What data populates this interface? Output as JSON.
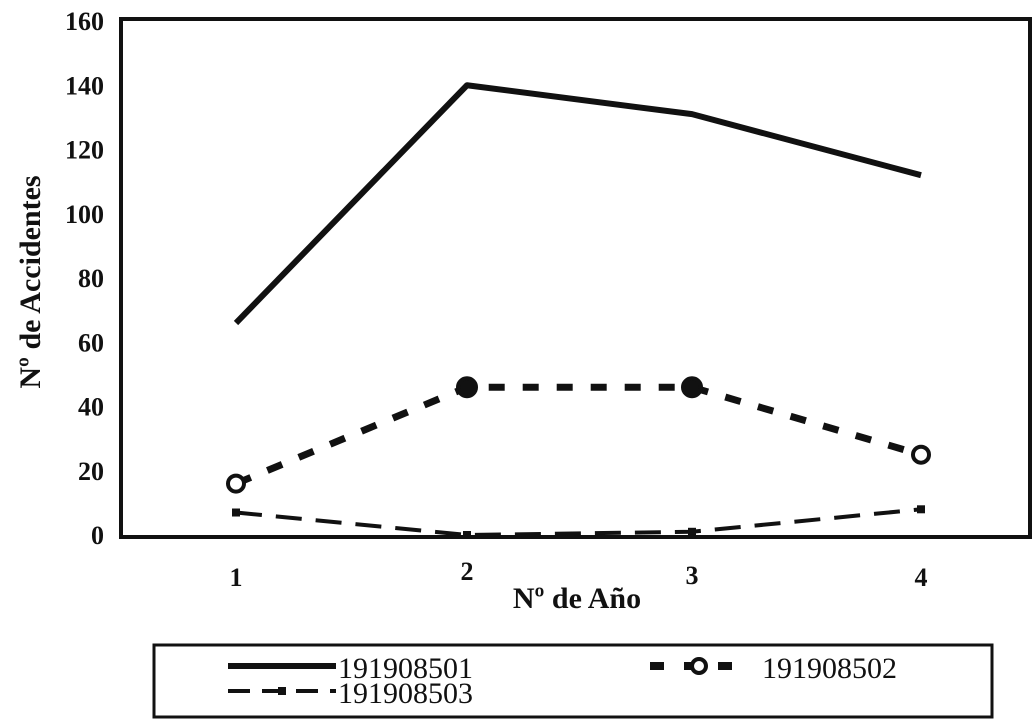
{
  "chart_data": {
    "type": "line",
    "x": [
      1,
      2,
      3,
      4
    ],
    "xlabel": "Nº de Año",
    "ylabel": "Nº de Accidentes",
    "ylim": [
      0,
      160
    ],
    "yticks": [
      0,
      20,
      40,
      60,
      80,
      100,
      120,
      140,
      160
    ],
    "xticks": [
      "1",
      "2",
      "3",
      "4"
    ],
    "grid": false,
    "legend_position": "bottom",
    "series": [
      {
        "name": "191908501",
        "values": [
          66,
          140,
          131,
          112
        ],
        "style": "solid",
        "marker": "none",
        "color": "#111111"
      },
      {
        "name": "191908502",
        "values": [
          16,
          46,
          46,
          25
        ],
        "style": "dashed",
        "marker": "circle",
        "color": "#111111"
      },
      {
        "name": "191908503",
        "values": [
          7,
          0,
          1,
          8
        ],
        "style": "long-dash",
        "marker": "square",
        "color": "#111111"
      }
    ]
  }
}
